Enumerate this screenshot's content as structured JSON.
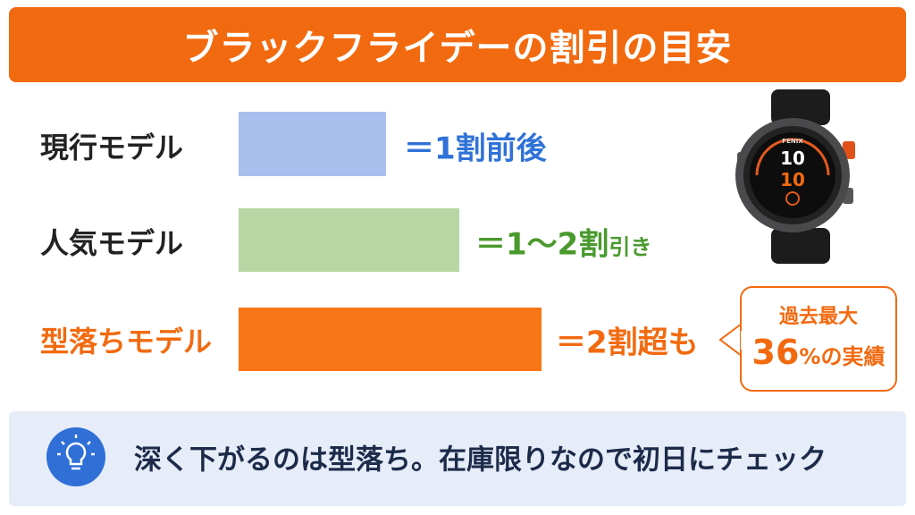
{
  "header": {
    "title": "ブラックフライデーの割引の目安"
  },
  "rows": [
    {
      "label": "現行モデル",
      "text": "＝1割前後"
    },
    {
      "label": "人気モデル",
      "text": "＝1～2割",
      "suffix": "引き"
    },
    {
      "label": "型落ちモデル",
      "text": "＝2割超も"
    }
  ],
  "callout": {
    "line1": "過去最大",
    "number": "36",
    "unit": "%",
    "rest": "の実績"
  },
  "watch": {
    "brand": "FENIX",
    "time_hour": "10",
    "time_min": "10"
  },
  "tip": {
    "text": "深く下がるのは型落ち。在庫限りなので初日にチェック"
  }
}
